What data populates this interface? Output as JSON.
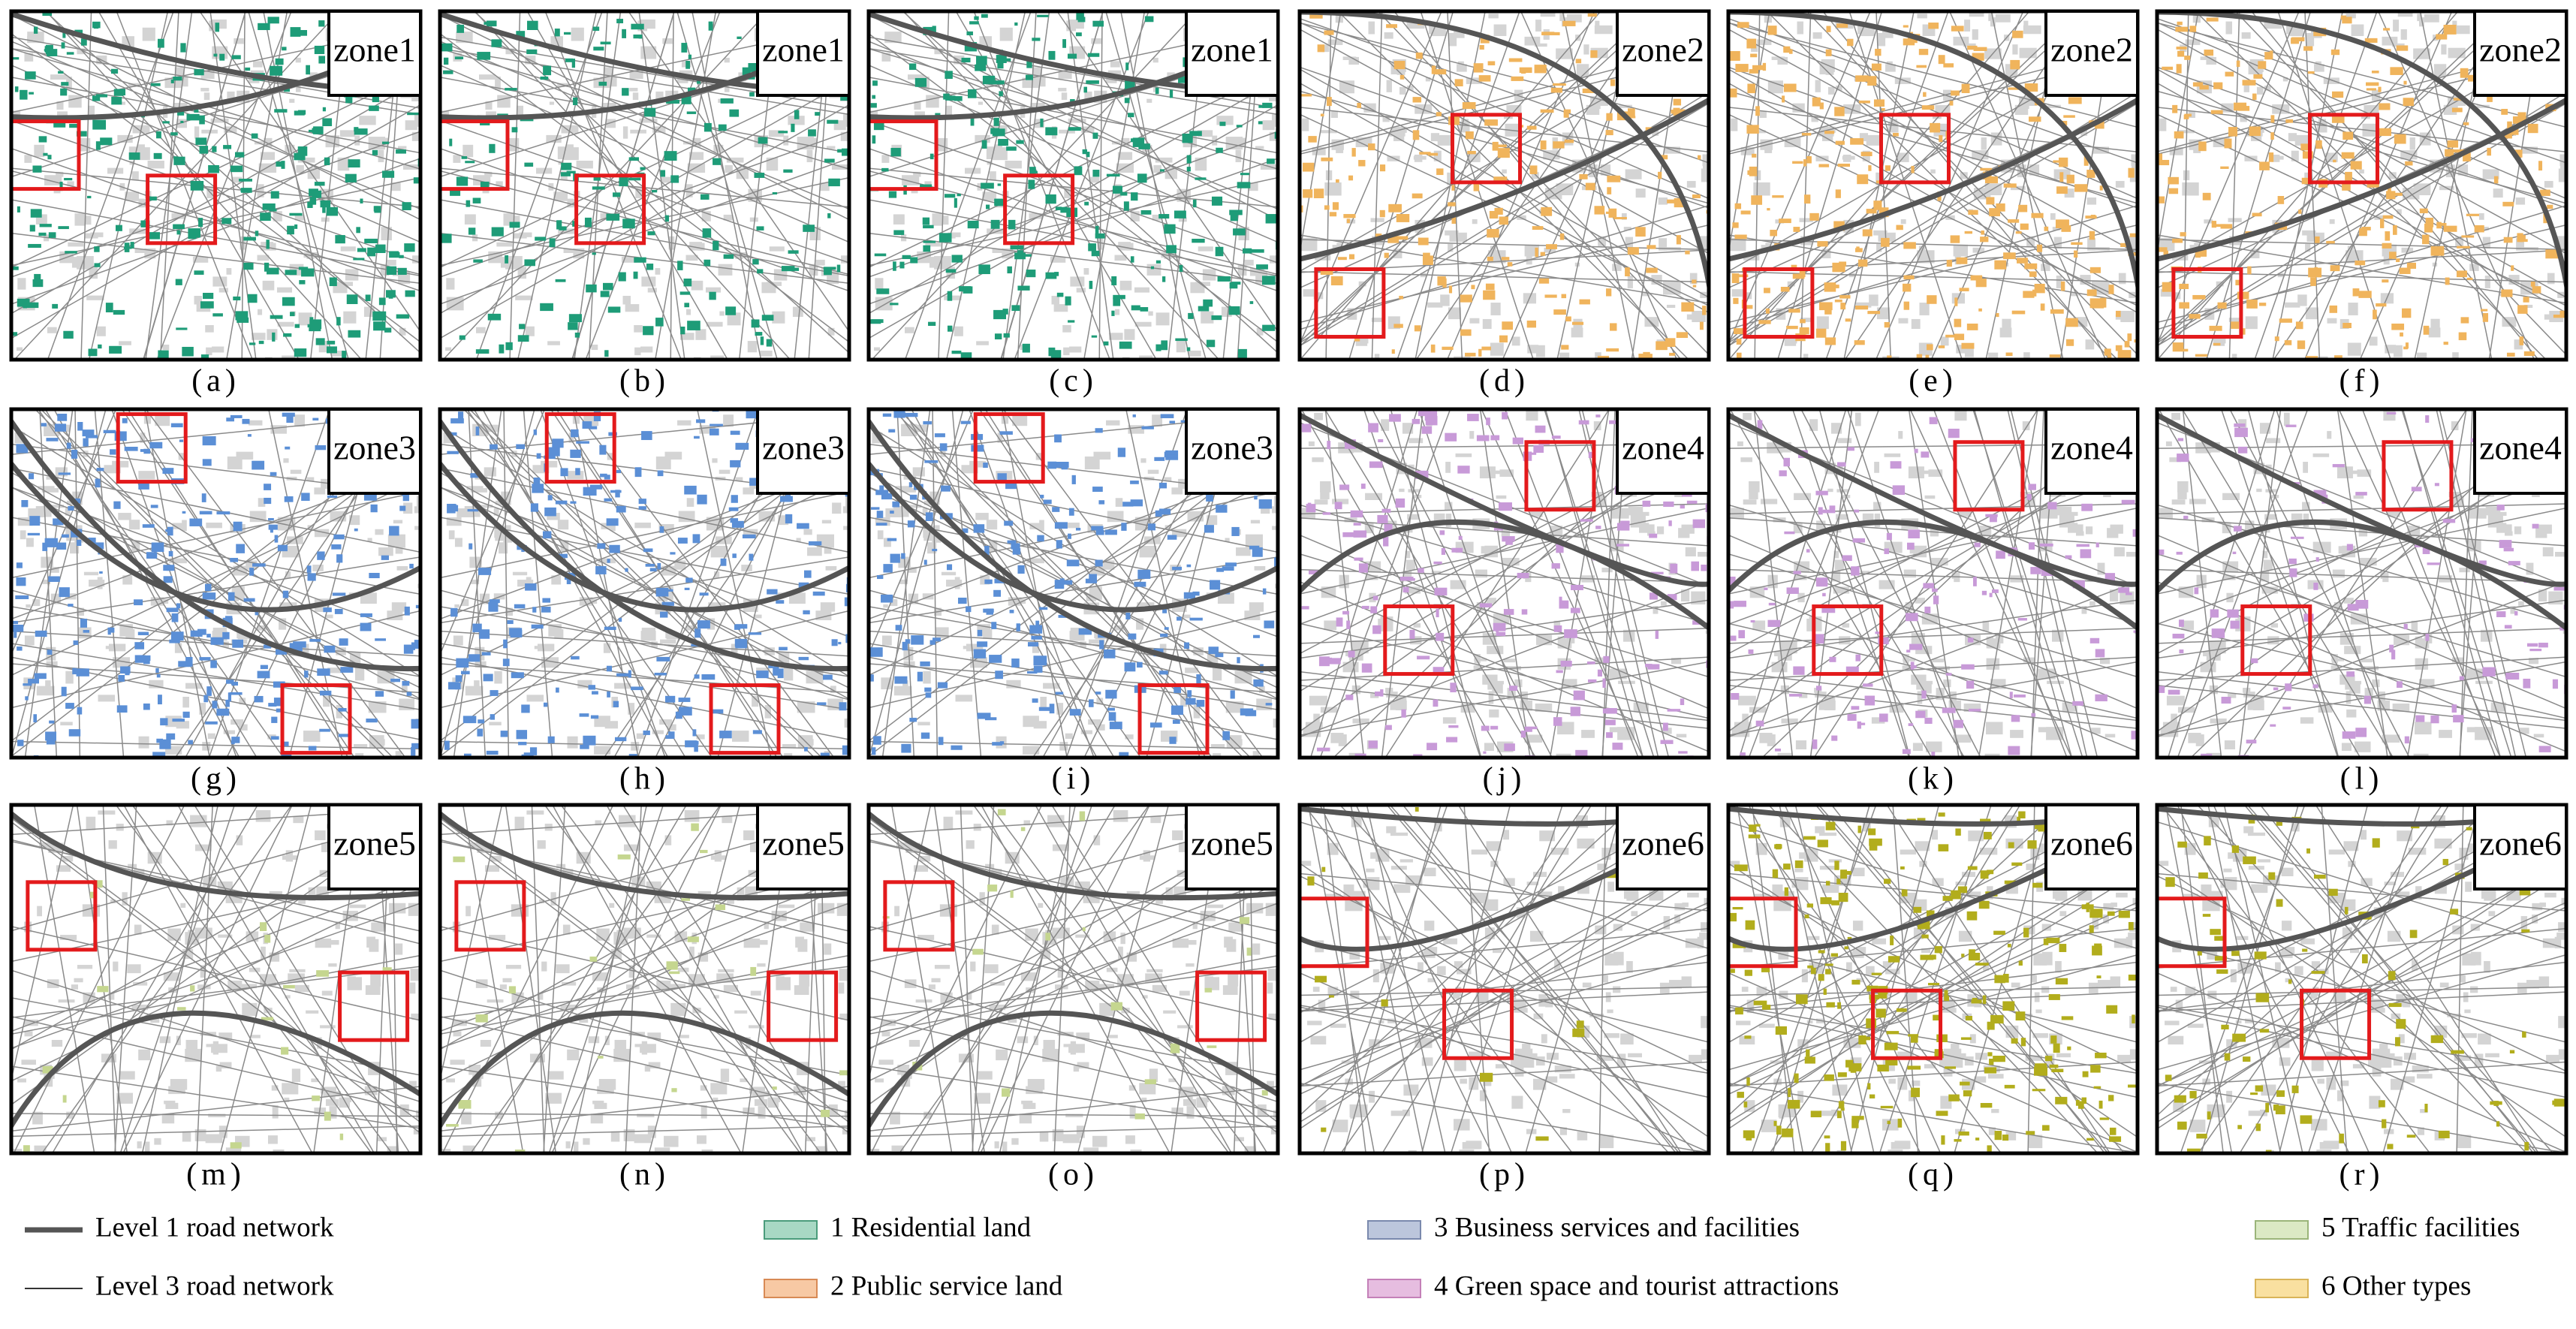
{
  "panels": [
    {
      "zone": "zone1",
      "caption": "(a)"
    },
    {
      "zone": "zone1",
      "caption": "(b)"
    },
    {
      "zone": "zone1",
      "caption": "(c)"
    },
    {
      "zone": "zone2",
      "caption": "(d)"
    },
    {
      "zone": "zone2",
      "caption": "(e)"
    },
    {
      "zone": "zone2",
      "caption": "(f)"
    },
    {
      "zone": "zone3",
      "caption": "(g)"
    },
    {
      "zone": "zone3",
      "caption": "(h)"
    },
    {
      "zone": "zone3",
      "caption": "(i)"
    },
    {
      "zone": "zone4",
      "caption": "(j)"
    },
    {
      "zone": "zone4",
      "caption": "(k)"
    },
    {
      "zone": "zone4",
      "caption": "(l)"
    },
    {
      "zone": "zone5",
      "caption": "(m)"
    },
    {
      "zone": "zone5",
      "caption": "(n)"
    },
    {
      "zone": "zone5",
      "caption": "(o)"
    },
    {
      "zone": "zone6",
      "caption": "(p)"
    },
    {
      "zone": "zone6",
      "caption": "(q)"
    },
    {
      "zone": "zone6",
      "caption": "(r)"
    }
  ],
  "legend": {
    "roads": [
      "Level 1 road network",
      "Level 3 road network"
    ],
    "land_types": [
      "1 Residential land",
      "2 Public service land",
      "3 Business services and facilities",
      "4 Green space and tourist attractions",
      "5 Traffic facilities",
      "6 Other types"
    ]
  }
}
